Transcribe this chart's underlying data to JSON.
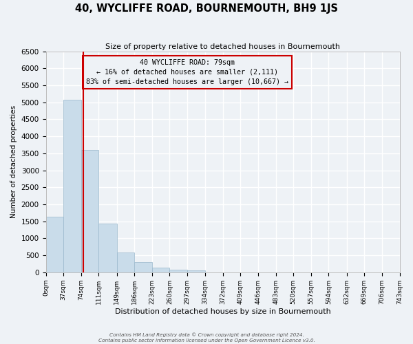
{
  "title": "40, WYCLIFFE ROAD, BOURNEMOUTH, BH9 1JS",
  "subtitle": "Size of property relative to detached houses in Bournemouth",
  "xlabel": "Distribution of detached houses by size in Bournemouth",
  "ylabel": "Number of detached properties",
  "bar_color": "#c9dcea",
  "bar_edge_color": "#9ab8cc",
  "background_color": "#eef2f6",
  "grid_color": "#ffffff",
  "annotation_box_color": "#cc0000",
  "property_line_color": "#cc0000",
  "bin_edges": [
    0,
    37,
    74,
    111,
    149,
    186,
    223,
    260,
    297,
    334,
    372,
    409,
    446,
    483,
    520,
    557,
    594,
    632,
    669,
    706,
    743
  ],
  "bin_labels": [
    "0sqm",
    "37sqm",
    "74sqm",
    "111sqm",
    "149sqm",
    "186sqm",
    "223sqm",
    "260sqm",
    "297sqm",
    "334sqm",
    "372sqm",
    "409sqm",
    "446sqm",
    "483sqm",
    "520sqm",
    "557sqm",
    "594sqm",
    "632sqm",
    "669sqm",
    "706sqm",
    "743sqm"
  ],
  "bar_heights": [
    1630,
    5080,
    3590,
    1430,
    590,
    305,
    145,
    80,
    50,
    0,
    0,
    0,
    0,
    0,
    0,
    0,
    0,
    0,
    0,
    0
  ],
  "ylim": [
    0,
    6500
  ],
  "yticks": [
    0,
    500,
    1000,
    1500,
    2000,
    2500,
    3000,
    3500,
    4000,
    4500,
    5000,
    5500,
    6000,
    6500
  ],
  "property_size": 79,
  "annotation_title": "40 WYCLIFFE ROAD: 79sqm",
  "annotation_line1": "← 16% of detached houses are smaller (2,111)",
  "annotation_line2": "83% of semi-detached houses are larger (10,667) →",
  "footer1": "Contains HM Land Registry data © Crown copyright and database right 2024.",
  "footer2": "Contains public sector information licensed under the Open Government Licence v3.0."
}
